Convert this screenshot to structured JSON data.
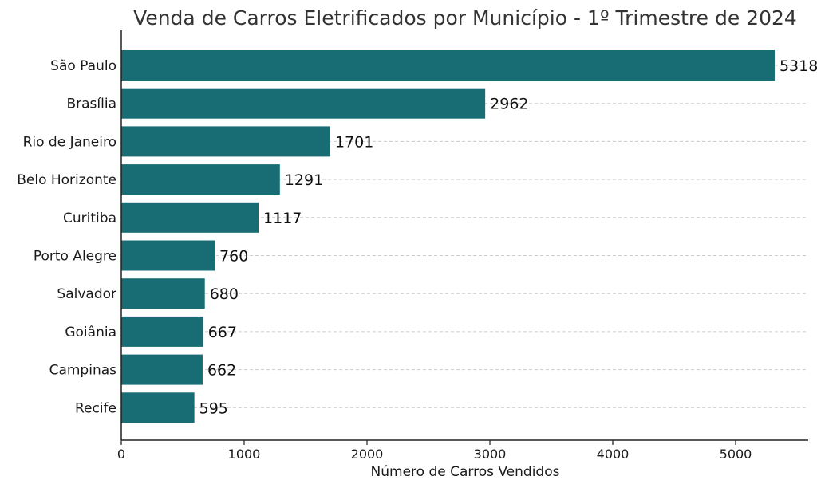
{
  "chart_data": {
    "type": "bar",
    "orientation": "horizontal",
    "title": "Venda de Carros Eletrificados por Município - 1º Trimestre de 2024",
    "xlabel": "Número de Carros Vendidos",
    "ylabel": "",
    "categories": [
      "São Paulo",
      "Brasília",
      "Rio de Janeiro",
      "Belo Horizonte",
      "Curitiba",
      "Porto Alegre",
      "Salvador",
      "Goiânia",
      "Campinas",
      "Recife"
    ],
    "values": [
      5318,
      2962,
      1701,
      1291,
      1117,
      760,
      680,
      667,
      662,
      595
    ],
    "value_labels": [
      "5318",
      "2962",
      "1701",
      "1291",
      "1117",
      "760",
      "680",
      "667",
      "662",
      "595"
    ],
    "xlim": [
      0,
      5600
    ],
    "xticks": [
      0,
      1000,
      2000,
      3000,
      4000,
      5000
    ],
    "xtick_labels": [
      "0",
      "1000",
      "2000",
      "3000",
      "4000",
      "5000"
    ],
    "grid": "horizontal dashed",
    "bar_color": "#176d73"
  }
}
